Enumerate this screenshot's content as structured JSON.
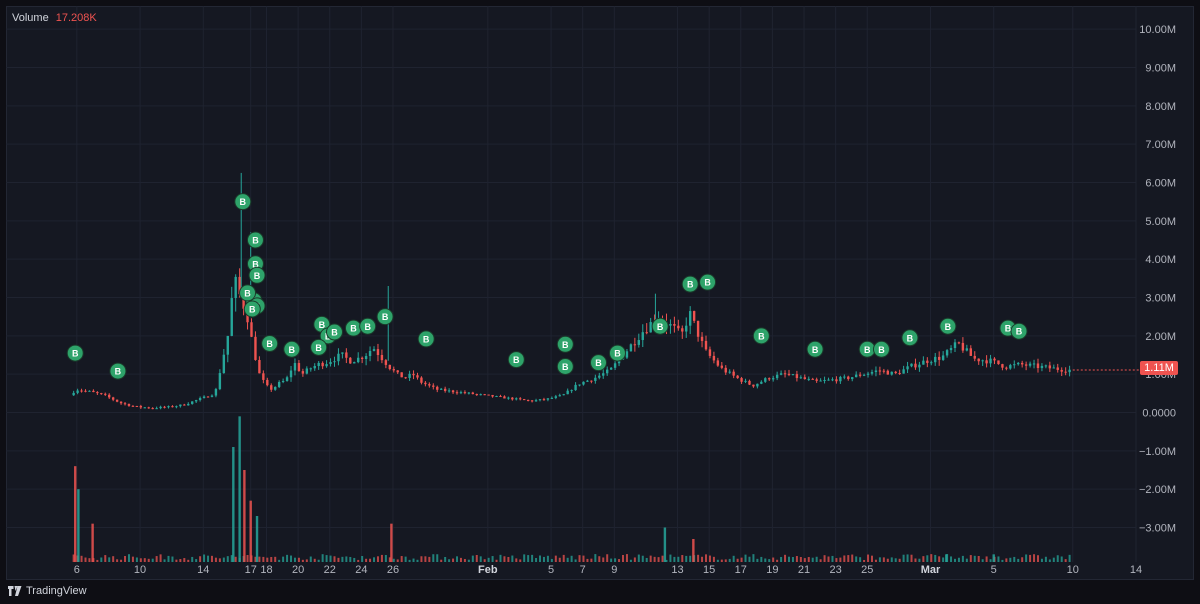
{
  "legend": {
    "label": "Volume",
    "value": "17.208K"
  },
  "footer": {
    "brand": "TradingView"
  },
  "colors": {
    "up": "#26a69a",
    "down": "#ef5350",
    "marker": "#2ea36a",
    "grid": "#1f2330",
    "text": "#b2b5be",
    "background": "#151822"
  },
  "chart_data": {
    "type": "candlestick",
    "y_axis": {
      "ticks": [
        "10.00M",
        "9.00M",
        "8.00M",
        "7.00M",
        "6.00M",
        "5.00M",
        "4.00M",
        "3.00M",
        "2.00M",
        "1.00M",
        "0.0000",
        "−1.00M",
        "−2.00M",
        "−3.00M"
      ],
      "tick_values": [
        10,
        9,
        8,
        7,
        6,
        5,
        4,
        3,
        2,
        1,
        0,
        -1,
        -2,
        -3
      ],
      "unit": "M",
      "range": [
        -3.9,
        10.5
      ]
    },
    "x_axis": {
      "ticks": [
        "6",
        "10",
        "14",
        "17",
        "18",
        "20",
        "22",
        "24",
        "26",
        "Feb",
        "5",
        "7",
        "9",
        "13",
        "15",
        "17",
        "19",
        "21",
        "23",
        "25",
        "Mar",
        "5",
        "10",
        "14"
      ],
      "tick_days": [
        6,
        10,
        14,
        17,
        18,
        20,
        22,
        24,
        26,
        32,
        36,
        38,
        40,
        44,
        46,
        48,
        50,
        52,
        54,
        56,
        60,
        64,
        69,
        73
      ],
      "range_days": [
        5,
        73
      ]
    },
    "last_price": "1.11M",
    "price_path": [
      [
        5.8,
        0.45
      ],
      [
        6.2,
        0.6
      ],
      [
        7,
        0.55
      ],
      [
        8,
        0.45
      ],
      [
        9,
        0.25
      ],
      [
        10,
        0.15
      ],
      [
        11,
        0.12
      ],
      [
        12,
        0.14
      ],
      [
        13,
        0.2
      ],
      [
        14,
        0.35
      ],
      [
        15,
        0.5
      ],
      [
        15.8,
        2.0
      ],
      [
        16.2,
        3.5
      ],
      [
        16.6,
        3.0
      ],
      [
        17,
        2.6
      ],
      [
        17.4,
        1.7
      ],
      [
        17.8,
        1.0
      ],
      [
        18.2,
        0.7
      ],
      [
        18.6,
        0.6
      ],
      [
        19,
        0.75
      ],
      [
        19.5,
        0.85
      ],
      [
        20,
        1.3
      ],
      [
        20.5,
        1.0
      ],
      [
        21,
        1.15
      ],
      [
        21.5,
        1.25
      ],
      [
        22,
        1.3
      ],
      [
        22.5,
        1.4
      ],
      [
        23,
        1.5
      ],
      [
        23.5,
        1.35
      ],
      [
        24,
        1.4
      ],
      [
        24.5,
        1.5
      ],
      [
        25,
        1.7
      ],
      [
        25.5,
        1.45
      ],
      [
        26,
        1.2
      ],
      [
        26.5,
        1.0
      ],
      [
        27,
        0.9
      ],
      [
        27.5,
        1.0
      ],
      [
        28,
        0.8
      ],
      [
        29,
        0.6
      ],
      [
        30,
        0.55
      ],
      [
        31,
        0.5
      ],
      [
        32,
        0.45
      ],
      [
        33,
        0.4
      ],
      [
        34,
        0.35
      ],
      [
        35,
        0.3
      ],
      [
        36,
        0.35
      ],
      [
        37,
        0.45
      ],
      [
        38,
        0.75
      ],
      [
        39,
        0.9
      ],
      [
        40,
        1.1
      ],
      [
        41,
        1.6
      ],
      [
        42,
        2.1
      ],
      [
        43,
        2.5
      ],
      [
        44,
        2.2
      ],
      [
        44.5,
        2.0
      ],
      [
        45,
        2.6
      ],
      [
        45.5,
        2.1
      ],
      [
        46,
        1.6
      ],
      [
        47,
        1.15
      ],
      [
        48,
        0.9
      ],
      [
        49,
        0.7
      ],
      [
        50,
        0.9
      ],
      [
        51,
        1.0
      ],
      [
        52,
        0.9
      ],
      [
        53,
        0.8
      ],
      [
        54,
        0.85
      ],
      [
        55,
        0.9
      ],
      [
        56,
        1.0
      ],
      [
        57,
        1.1
      ],
      [
        58,
        1.0
      ],
      [
        59,
        1.2
      ],
      [
        60,
        1.35
      ],
      [
        61,
        1.45
      ],
      [
        62,
        1.8
      ],
      [
        62.5,
        1.6
      ],
      [
        63,
        1.4
      ],
      [
        64,
        1.35
      ],
      [
        65,
        1.2
      ],
      [
        66,
        1.25
      ],
      [
        67,
        1.2
      ],
      [
        68,
        1.15
      ],
      [
        69,
        1.11
      ]
    ],
    "volume_spikes": [
      [
        5.9,
        2.5,
        "down"
      ],
      [
        6.1,
        1.9,
        "up"
      ],
      [
        7,
        1.0,
        "down"
      ],
      [
        15.9,
        3.0,
        "up"
      ],
      [
        16.3,
        3.8,
        "up"
      ],
      [
        16.6,
        2.4,
        "down"
      ],
      [
        17,
        1.6,
        "down"
      ],
      [
        17.4,
        1.2,
        "up"
      ],
      [
        25.9,
        1.0,
        "down"
      ],
      [
        43.2,
        0.9,
        "up"
      ],
      [
        45,
        0.6,
        "down"
      ],
      [
        61,
        0.2,
        "up"
      ],
      [
        64,
        0.2,
        "up"
      ]
    ],
    "buy_markers": [
      [
        5.9,
        1.55
      ],
      [
        8.6,
        1.08
      ],
      [
        16.5,
        5.5
      ],
      [
        17.3,
        4.5
      ],
      [
        17.3,
        3.88
      ],
      [
        17.4,
        3.58
      ],
      [
        17.2,
        2.92
      ],
      [
        17.4,
        2.78
      ],
      [
        16.8,
        3.12
      ],
      [
        17.1,
        2.7
      ],
      [
        18.2,
        1.8
      ],
      [
        19.6,
        1.65
      ],
      [
        21.5,
        2.3
      ],
      [
        21.9,
        2.0
      ],
      [
        22.3,
        2.1
      ],
      [
        21.3,
        1.7
      ],
      [
        23.5,
        2.2
      ],
      [
        24.4,
        2.25
      ],
      [
        25.5,
        2.5
      ],
      [
        28.1,
        1.92
      ],
      [
        33.8,
        1.38
      ],
      [
        36.9,
        1.78
      ],
      [
        36.9,
        1.2
      ],
      [
        39.0,
        1.3
      ],
      [
        40.2,
        1.55
      ],
      [
        42.9,
        2.25
      ],
      [
        44.8,
        3.35
      ],
      [
        45.9,
        3.4
      ],
      [
        49.3,
        2.0
      ],
      [
        52.7,
        1.65
      ],
      [
        56.0,
        1.65
      ],
      [
        56.9,
        1.65
      ],
      [
        58.7,
        1.95
      ],
      [
        61.1,
        2.25
      ],
      [
        64.9,
        2.2
      ],
      [
        65.6,
        2.12
      ]
    ],
    "marker_label": "B"
  }
}
